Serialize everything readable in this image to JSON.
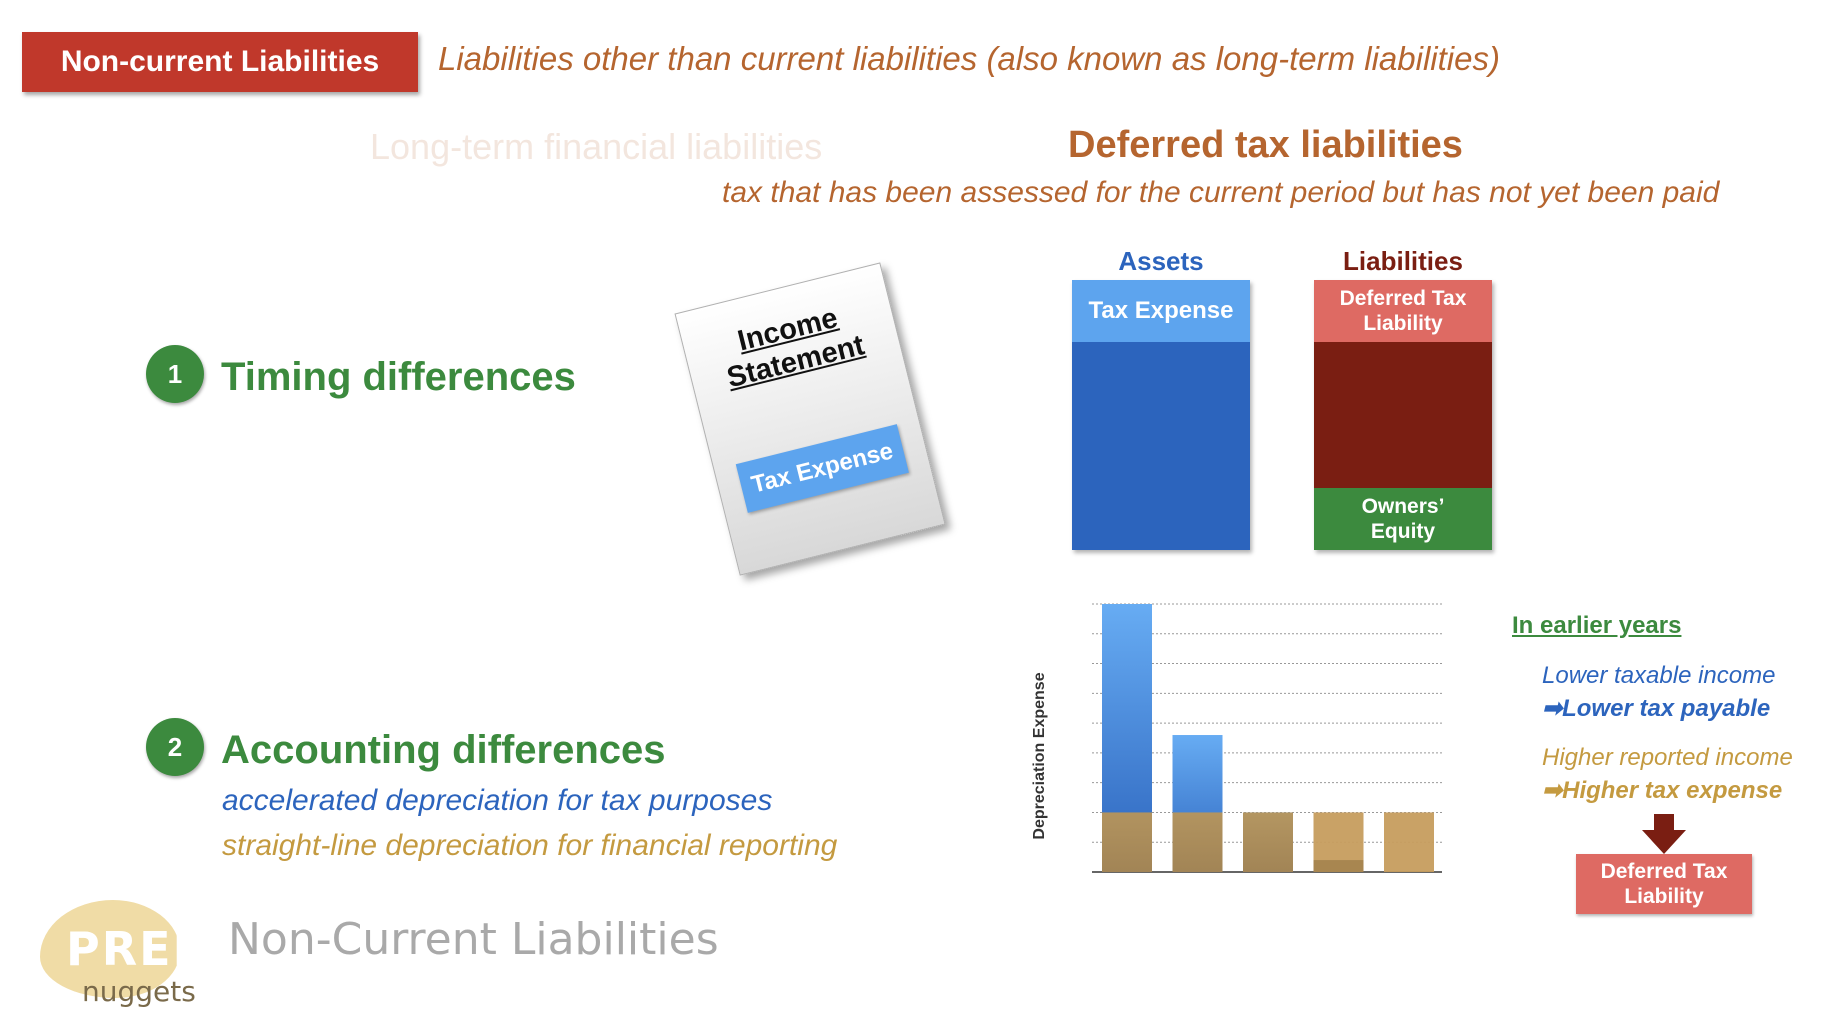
{
  "header": {
    "badge": "Non-current Liabilities",
    "description": "Liabilities other than current liabilities (also known as long-term liabilities)"
  },
  "subtopics": {
    "faded": "Long-term financial liabilities",
    "active_title": "Deferred tax liabilities",
    "active_description": "tax that has been assessed for the current period but has not yet been paid"
  },
  "sections": [
    {
      "number": "1",
      "title": "Timing differences"
    },
    {
      "number": "2",
      "title": "Accounting differences",
      "line1": "accelerated depreciation for tax purposes",
      "line2": "straight-line depreciation for financial reporting"
    }
  ],
  "income_statement": {
    "title": "Income\nStatement",
    "item": "Tax Expense"
  },
  "balance_sheet": {
    "assets_label": "Assets",
    "liabilities_label": "Liabilities",
    "asset_item": "Tax Expense",
    "liability_item": "Deferred Tax Liability",
    "equity_item": "Owners’ Equity"
  },
  "chart_data": {
    "type": "bar",
    "ylabel": "Depreciation Expense",
    "categories": [
      "",
      "",
      "",
      "",
      ""
    ],
    "series": [
      {
        "values": [
          4.5,
          2.3,
          1.0,
          0.2,
          0.0
        ]
      },
      {
        "values": [
          1.0,
          1.0,
          1.0,
          1.0,
          1.0
        ]
      }
    ],
    "stacked_overlay": true,
    "ylim": [
      0,
      4.5
    ],
    "grid": true
  },
  "notes": {
    "heading": "In earlier years",
    "lower_income": "Lower taxable income",
    "lower_tax": "➡Lower tax payable",
    "higher_income": "Higher reported income",
    "higher_expense": "➡Higher tax expense",
    "result": "Deferred Tax Liability"
  },
  "colors": {
    "accent_red": "#c0382b",
    "orange_text": "#b5652f",
    "green": "#3c8a3e",
    "blue": "#2c64bd",
    "light_blue": "#5da4ee",
    "maroon": "#7a1e12",
    "salmon": "#de6a63",
    "tan": "#b8955a",
    "gold_text": "#c49a40"
  },
  "footer": {
    "logo_top": "PREP",
    "logo_bottom": "nuggets",
    "title": "Non-Current Liabilities"
  }
}
